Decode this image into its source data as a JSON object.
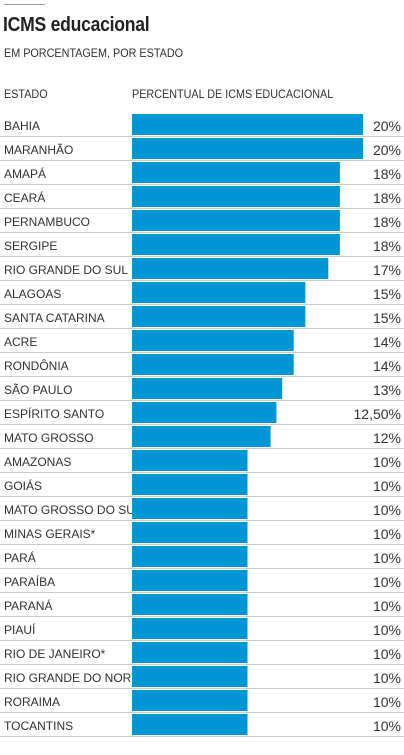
{
  "header": {
    "title": "ICMS educacional",
    "subtitle": "EM PORCENTAGEM, POR ESTADO"
  },
  "columns": {
    "state": "ESTADO",
    "value": "PERCENTUAL DE ICMS EDUCACIONAL"
  },
  "colors": {
    "bar": "#0096d6",
    "divider": "#cccccc",
    "text": "#333333"
  },
  "chart_data": {
    "type": "bar",
    "orientation": "horizontal",
    "categories": [
      "BAHIA",
      "MARANHÃO",
      "AMAPÁ",
      "CEARÁ",
      "PERNAMBUCO",
      "SERGIPE",
      "RIO GRANDE DO SUL",
      "ALAGOAS",
      "SANTA CATARINA",
      "ACRE",
      "RONDÔNIA",
      "SÃO PAULO",
      "ESPÍRITO SANTO",
      "MATO GROSSO",
      "AMAZONAS",
      "GOIÁS",
      "MATO GROSSO DO SUL",
      "MINAS GERAIS*",
      "PARÁ",
      "PARAÍBA",
      "PARANÁ",
      "PIAUÍ",
      "RIO DE JANEIRO*",
      "RIO GRANDE DO NORTE",
      "RORAIMA",
      "TOCANTINS"
    ],
    "values": [
      20,
      20,
      18,
      18,
      18,
      18,
      17,
      15,
      15,
      14,
      14,
      13,
      12.5,
      12,
      10,
      10,
      10,
      10,
      10,
      10,
      10,
      10,
      10,
      10,
      10,
      10
    ],
    "value_labels": [
      "20%",
      "20%",
      "18%",
      "18%",
      "18%",
      "18%",
      "17%",
      "15%",
      "15%",
      "14%",
      "14%",
      "13%",
      "12,50%",
      "12%",
      "10%",
      "10%",
      "10%",
      "10%",
      "10%",
      "10%",
      "10%",
      "10%",
      "10%",
      "10%",
      "10%",
      "10%"
    ],
    "xlim": [
      0,
      20
    ],
    "grid": false
  }
}
